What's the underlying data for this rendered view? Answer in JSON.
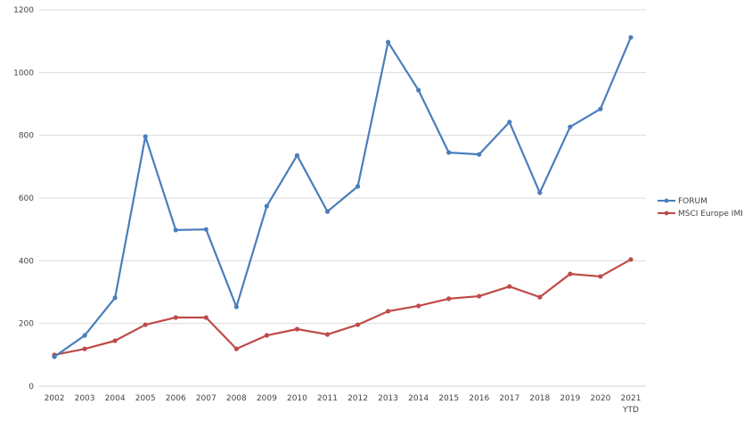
{
  "chart_data": {
    "type": "line",
    "title": "",
    "xlabel": "",
    "ylabel": "",
    "ylim": [
      0,
      1200
    ],
    "yticks": [
      0,
      200,
      400,
      600,
      800,
      1000,
      1200
    ],
    "grid": true,
    "legend_position": "right",
    "categories": [
      "2002",
      "2003",
      "2004",
      "2005",
      "2006",
      "2007",
      "2008",
      "2009",
      "2010",
      "2011",
      "2012",
      "2013",
      "2014",
      "2015",
      "2016",
      "2017",
      "2018",
      "2019",
      "2020",
      "2021"
    ],
    "category_sublabels": {
      "2021": "YTD"
    },
    "series": [
      {
        "name": "FORUM",
        "color": "#4a7ebb",
        "values": [
          94,
          162,
          282,
          796,
          498,
          500,
          253,
          574,
          736,
          557,
          637,
          1097,
          944,
          745,
          739,
          842,
          617,
          827,
          884,
          1112
        ]
      },
      {
        "name": "MSCI Europe IMI",
        "color": "#be4b48",
        "values": [
          100,
          119,
          145,
          196,
          219,
          219,
          119,
          162,
          182,
          165,
          196,
          239,
          256,
          279,
          287,
          318,
          284,
          358,
          350,
          404
        ]
      }
    ]
  }
}
